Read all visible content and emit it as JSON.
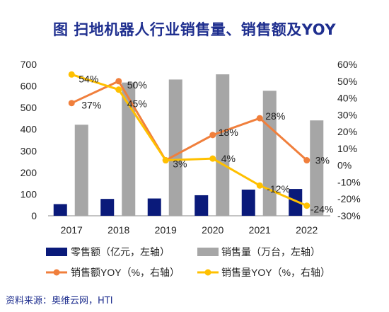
{
  "title": "图 扫地机器人行业销售量、销售额及YOY",
  "source": "资料来源：奥维云网，HTI",
  "chart_data": {
    "type": "bar",
    "categories": [
      "2017",
      "2018",
      "2019",
      "2020",
      "2021",
      "2022"
    ],
    "left_axis": {
      "ylim": [
        0,
        700
      ],
      "ticks": [
        "0",
        "100",
        "200",
        "300",
        "400",
        "500",
        "600",
        "700"
      ]
    },
    "right_axis": {
      "ylim": [
        -30,
        60
      ],
      "ticks": [
        "60%",
        "50%",
        "40%",
        "30%",
        "20%",
        "10%",
        "0%",
        "-10%",
        "-20%",
        "-30%"
      ]
    },
    "bar_series": [
      {
        "name": "零售额（亿元，左轴）",
        "axis": "left",
        "color": "#0a1a7a",
        "values": [
          54,
          78,
          80,
          95,
          121,
          124
        ]
      },
      {
        "name": "销售量（万台，左轴）",
        "axis": "left",
        "color": "#a6a6a6",
        "values": [
          421,
          616,
          630,
          654,
          578,
          441
        ]
      }
    ],
    "line_series": [
      {
        "name": "销售额YOY（%，右轴）",
        "axis": "right",
        "color": "#f07f3c",
        "values": [
          37,
          50,
          3,
          18,
          28,
          3
        ],
        "labels": [
          "37%",
          "50%",
          "3%",
          "18%",
          "28%",
          "3%"
        ]
      },
      {
        "name": "销售量YOY（%，右轴）",
        "axis": "right",
        "color": "#ffc000",
        "values": [
          54,
          45,
          3,
          4,
          -12,
          -24
        ],
        "labels": [
          "54%",
          "45%",
          "",
          "4%",
          "-12%",
          "-24%"
        ]
      }
    ],
    "grid": false,
    "legend": "bottom"
  }
}
